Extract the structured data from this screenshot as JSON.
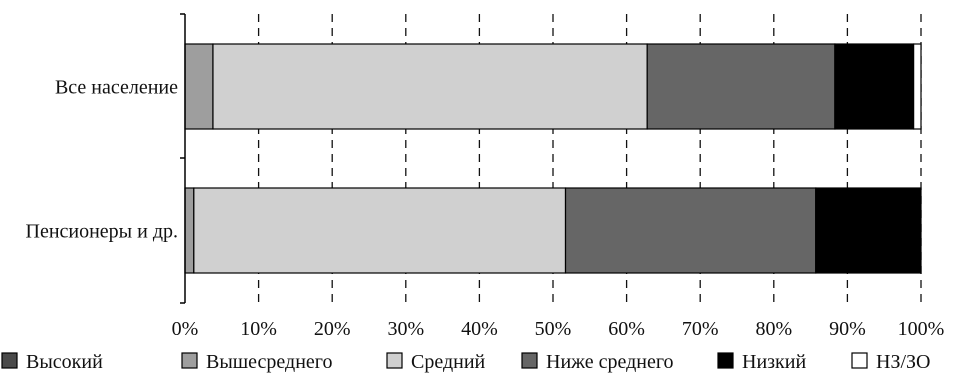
{
  "chart_data": {
    "type": "bar",
    "orientation": "horizontal",
    "stacked": true,
    "percent": true,
    "categories": [
      "Все население",
      "Пенсионеры и др."
    ],
    "series": [
      {
        "name": "Высокий",
        "color": "#4a4a4a",
        "values": [
          0.0,
          0.0
        ]
      },
      {
        "name": "Вышесреднего",
        "color": "#9e9e9e",
        "values": [
          3.8,
          1.2
        ]
      },
      {
        "name": "Средний",
        "color": "#d0d0d0",
        "values": [
          59.0,
          50.5
        ]
      },
      {
        "name": "Ниже среднего",
        "color": "#666666",
        "values": [
          25.5,
          34.0
        ]
      },
      {
        "name": "Низкий",
        "color": "#000000",
        "values": [
          10.7,
          14.3
        ]
      },
      {
        "name": "НЗ/ЗО",
        "color": "#ffffff",
        "values": [
          1.0,
          0.0
        ]
      }
    ],
    "xlim": [
      0,
      100
    ],
    "xticks": [
      0,
      10,
      20,
      30,
      40,
      50,
      60,
      70,
      80,
      90,
      100
    ],
    "xtick_labels": [
      "0%",
      "10%",
      "20%",
      "30%",
      "40%",
      "50%",
      "60%",
      "70%",
      "80%",
      "90%",
      "100%"
    ],
    "title": "",
    "xlabel": "",
    "ylabel": "",
    "grid": "vertical dashed",
    "legend": "bottom"
  }
}
